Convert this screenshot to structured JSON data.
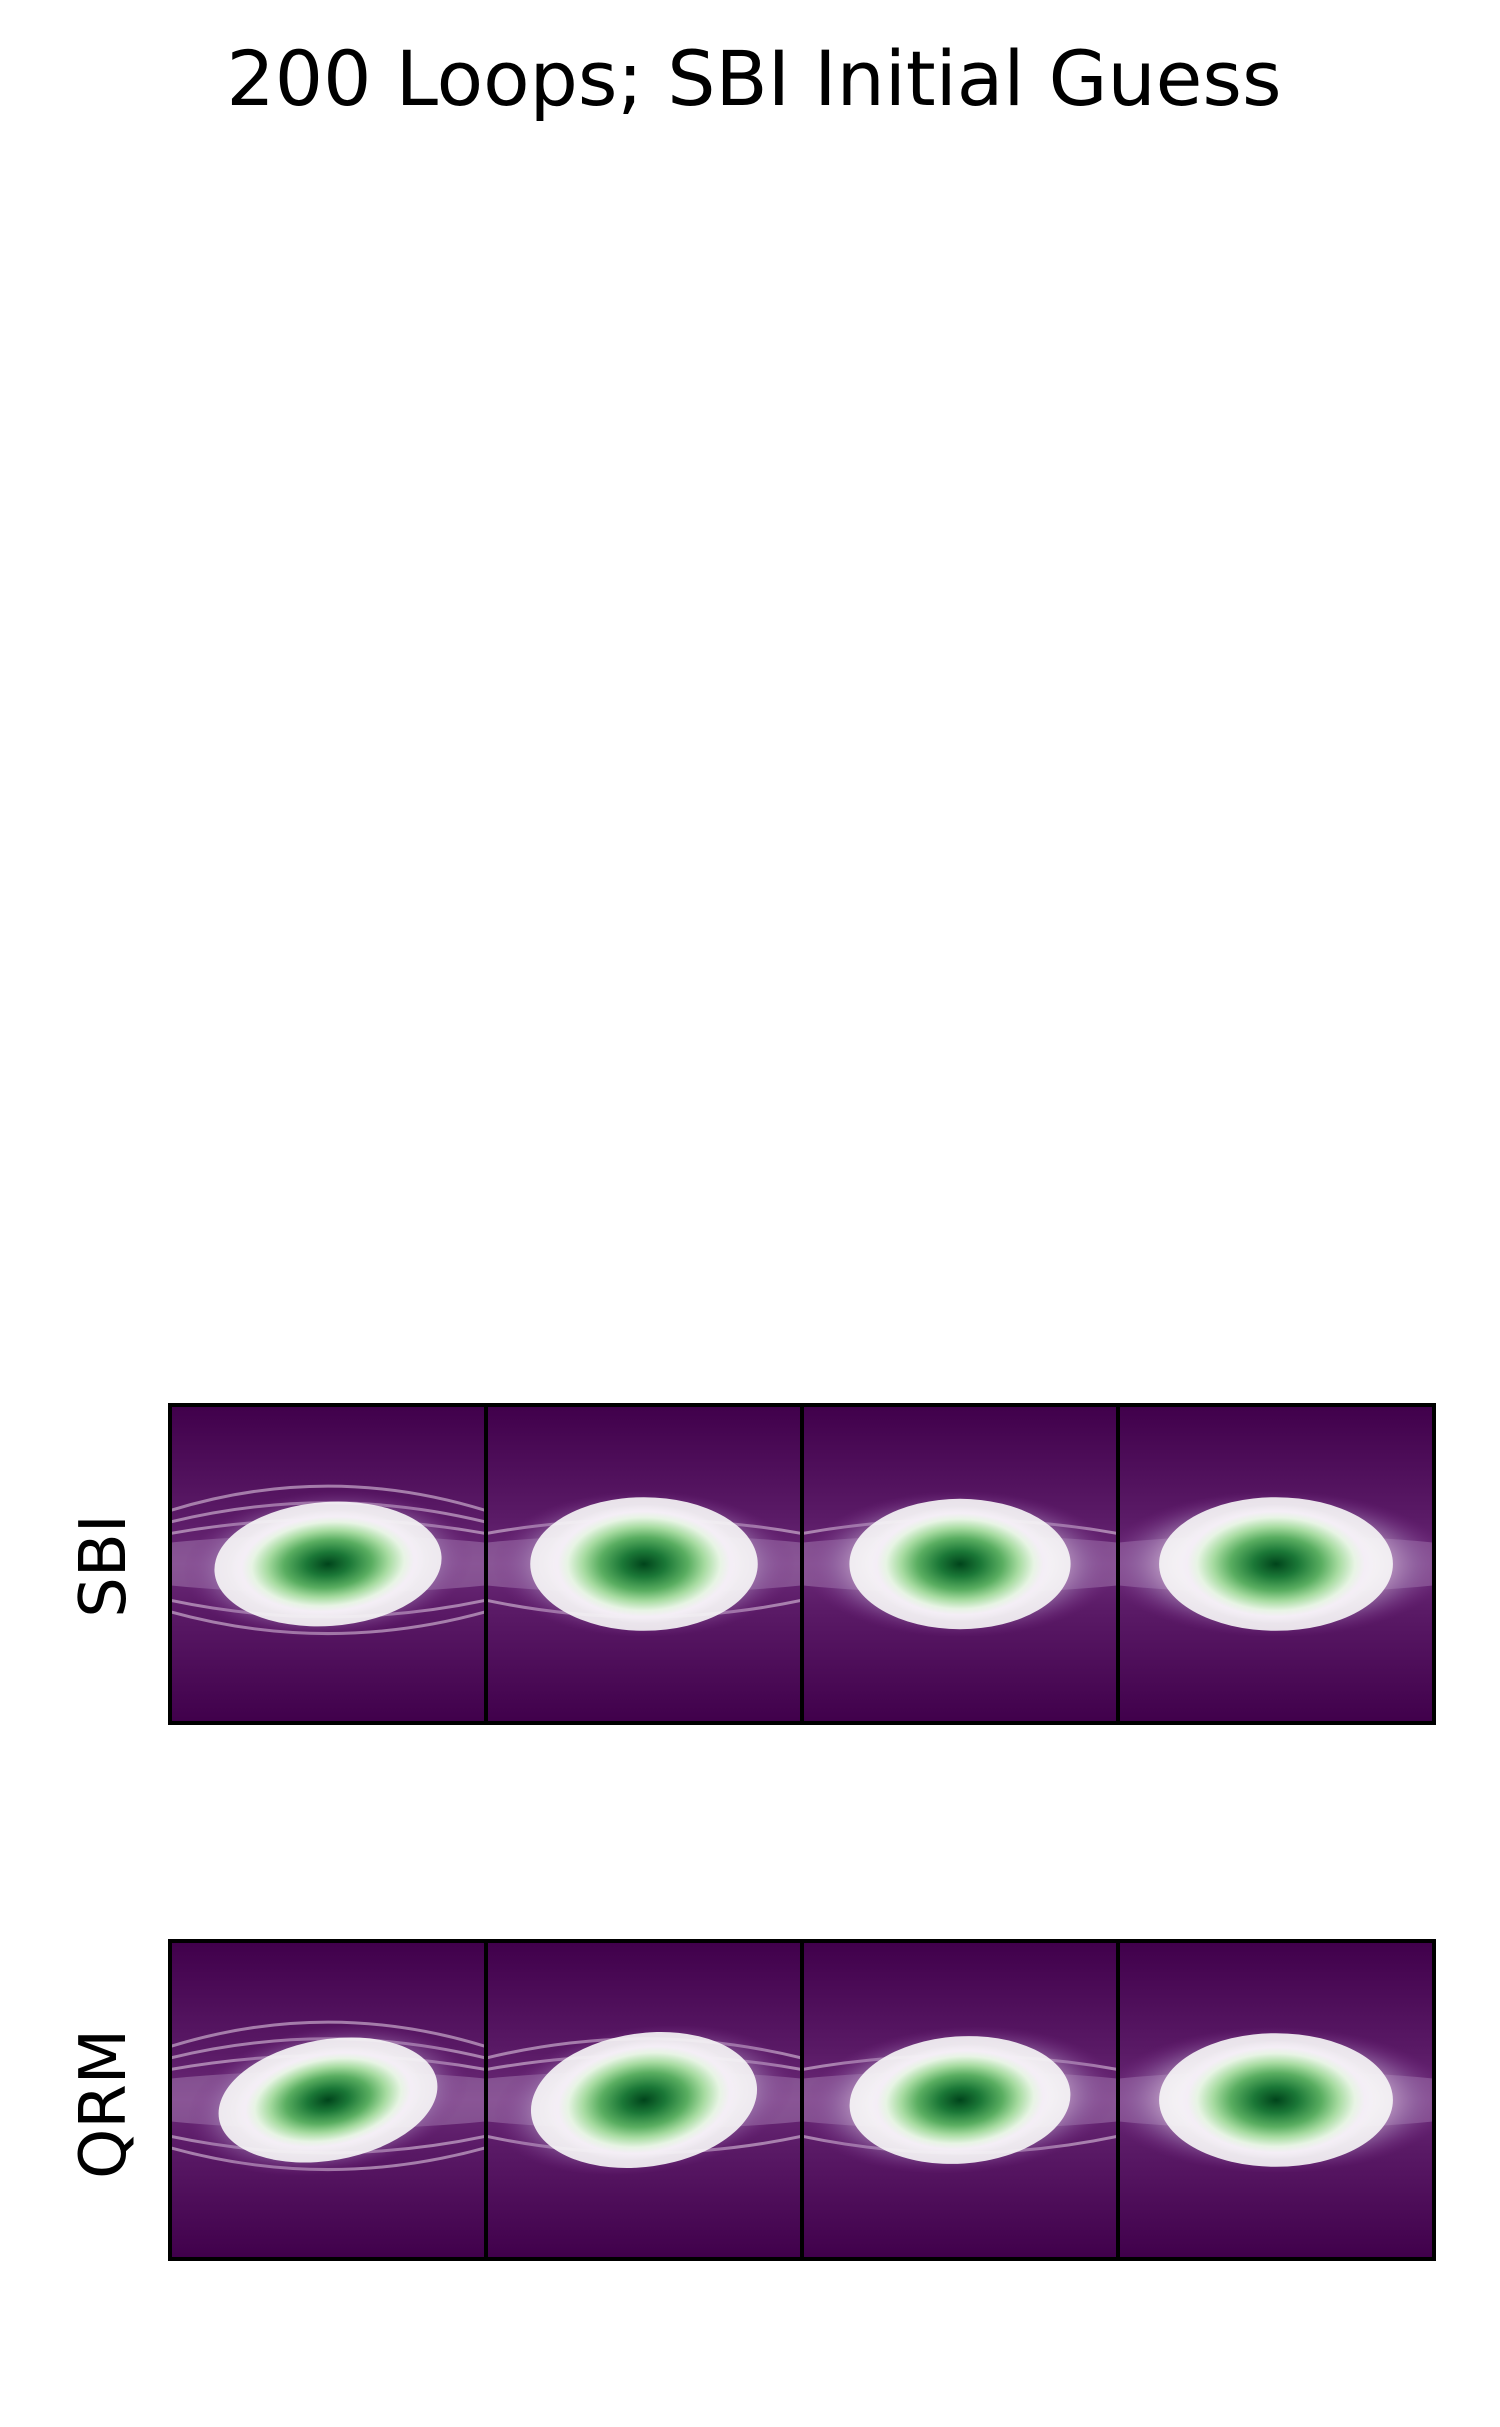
{
  "chart_data": {
    "type": "heatmap",
    "title": "200 Loops; SBI Initial Guess",
    "colormap": "PRGn",
    "colors": {
      "low": "#40004b",
      "mid": "#f7f7f7",
      "high": "#00441b"
    },
    "rows": [
      {
        "label": "SBI",
        "panels": 4
      },
      {
        "label": "QRM",
        "panels": 4
      }
    ],
    "axes_ticks": false,
    "grid": false
  }
}
